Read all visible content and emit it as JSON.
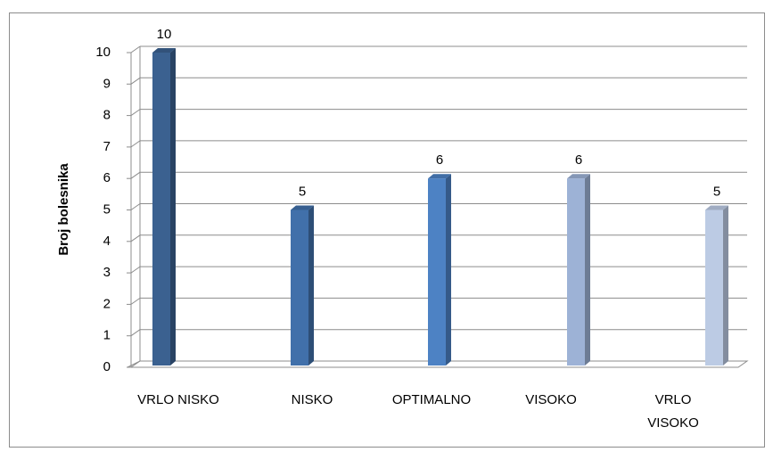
{
  "chart_data": {
    "type": "bar3d",
    "y_label": "Broj bolesnika",
    "categories": [
      "VRLO NISKO",
      "NISKO",
      "OPTIMALNO",
      "VISOKO",
      "VRLO VISOKO"
    ],
    "values": [
      10,
      5,
      6,
      6,
      5
    ],
    "colors": [
      "#3b6190",
      "#4170aa",
      "#4d82c4",
      "#9db2d6",
      "#bccbe4"
    ],
    "ylim": [
      0,
      10
    ],
    "yticks": [
      0,
      1,
      2,
      3,
      4,
      5,
      6,
      7,
      8,
      9,
      10
    ],
    "grid": true,
    "data_labels": true
  }
}
